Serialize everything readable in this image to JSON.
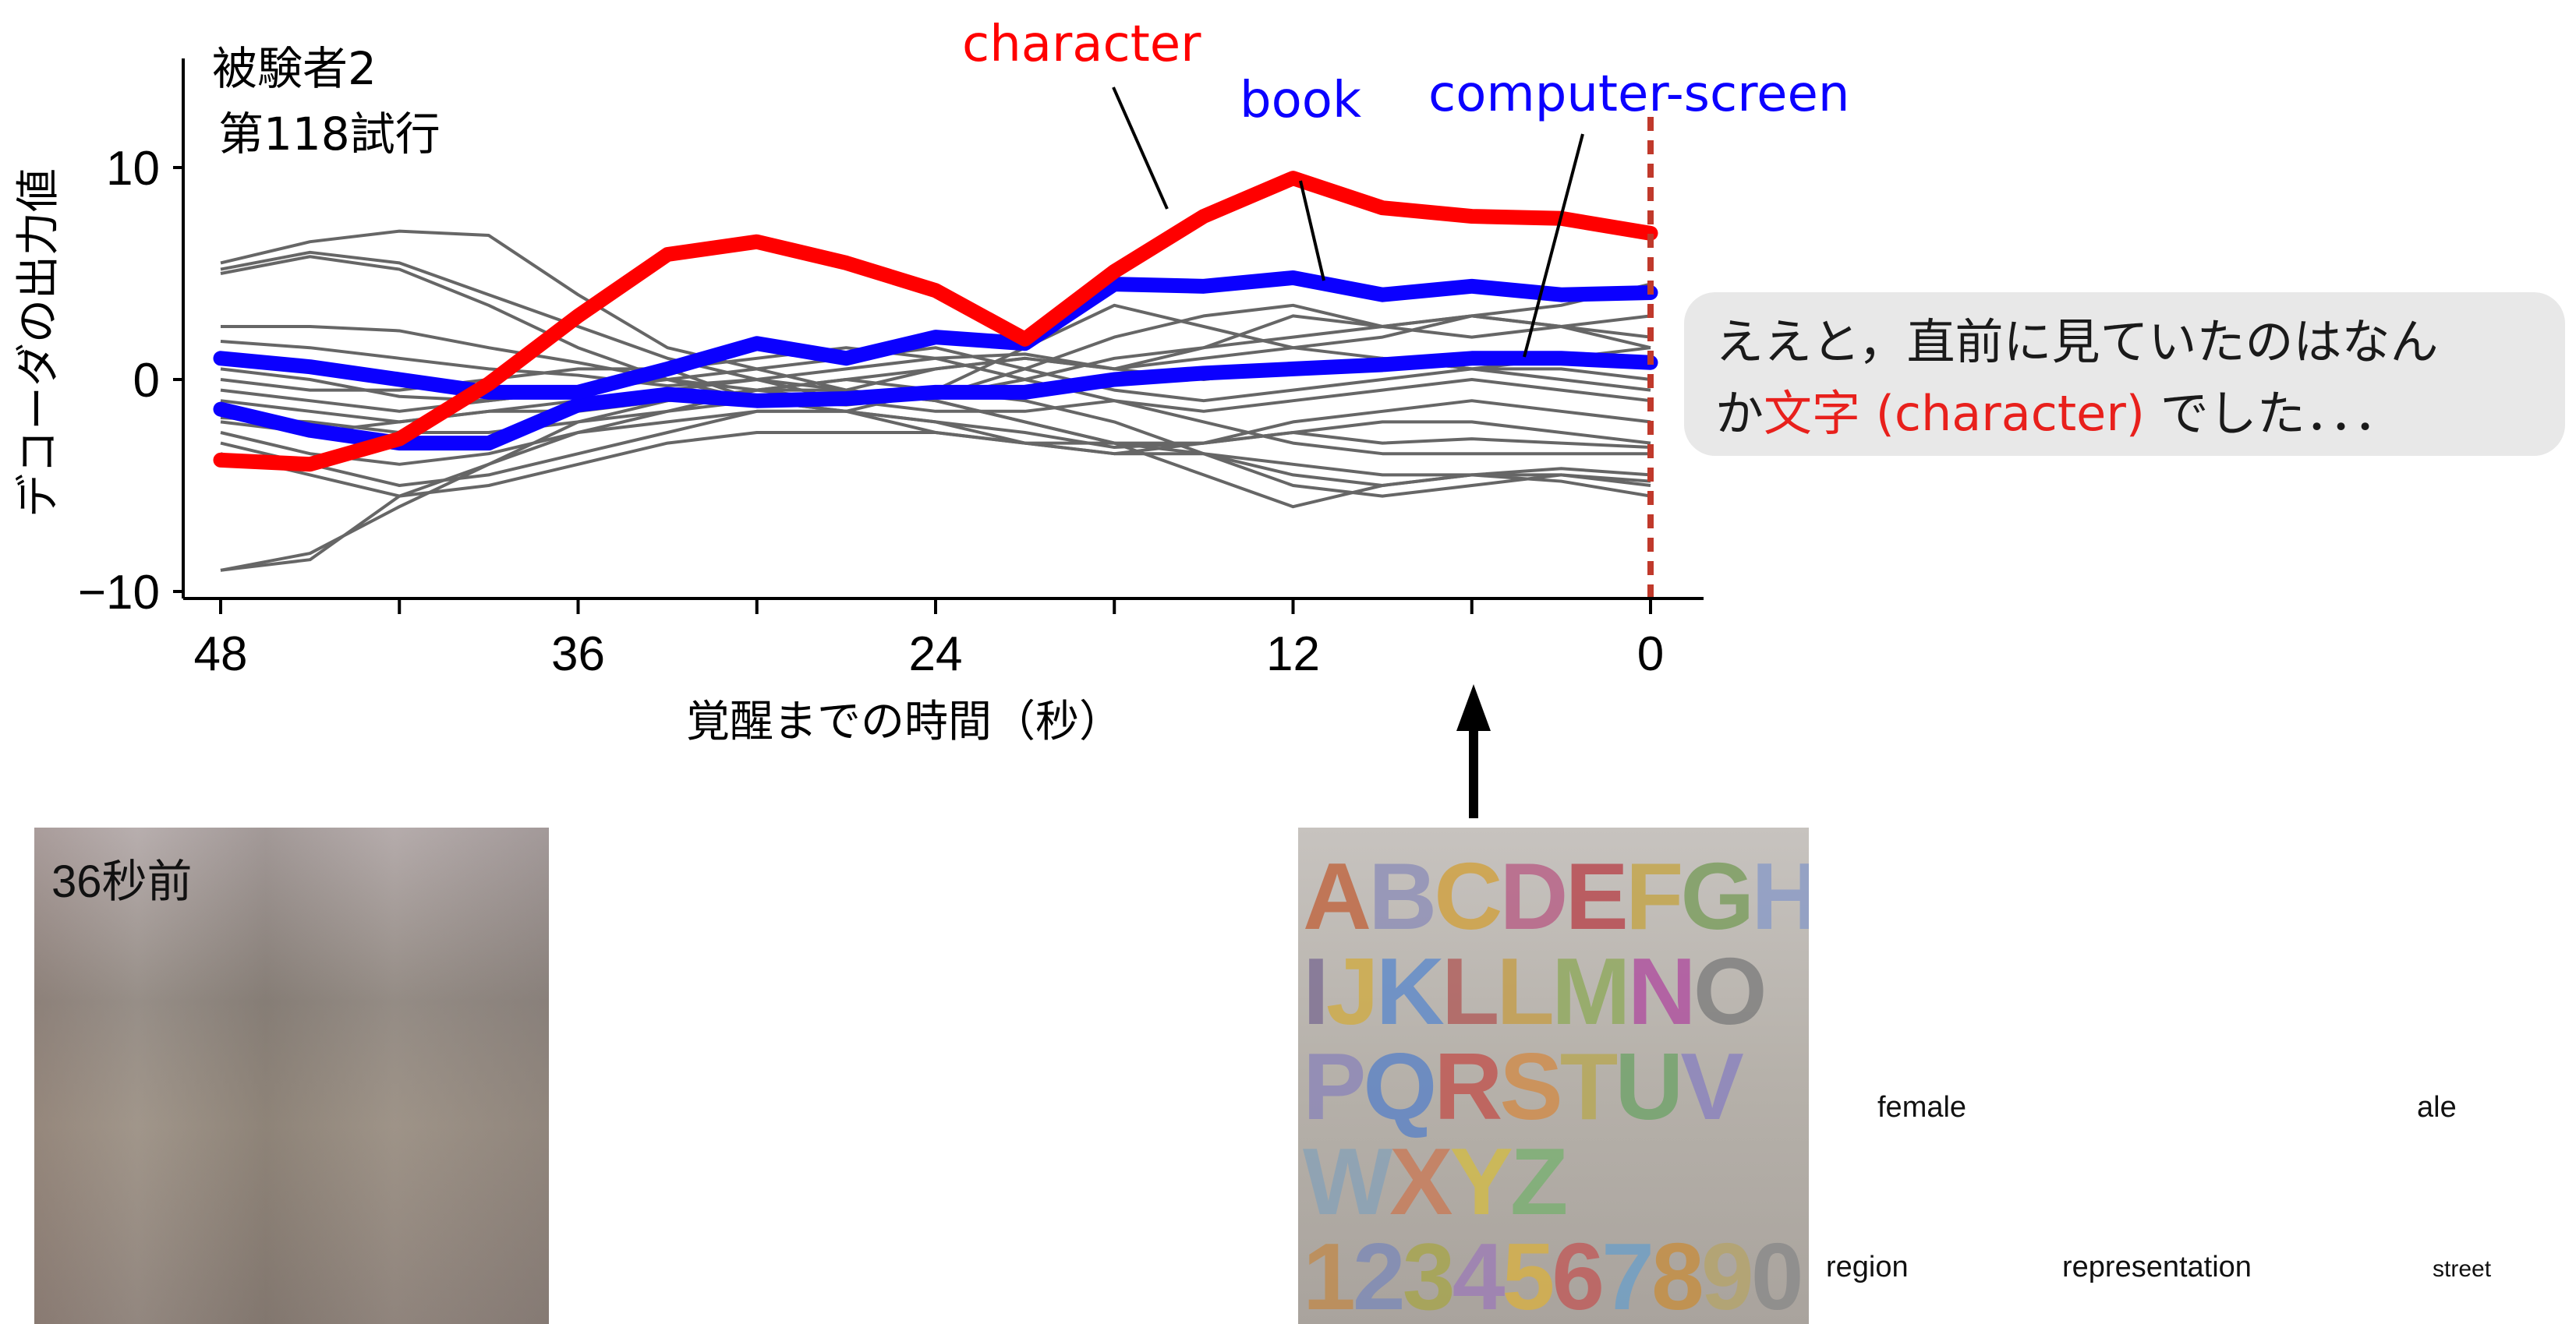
{
  "chart_data": {
    "type": "line",
    "annotation": [
      "被験者2",
      "第118試行"
    ],
    "xlabel": "覚醒までの時間（秒）",
    "ylabel": "デコーダの出力値",
    "xlim": [
      48,
      0
    ],
    "ylim": [
      -10,
      15
    ],
    "x_ticks": [
      48,
      36,
      24,
      12,
      0
    ],
    "x_tick_labels": [
      "48",
      "36",
      "24",
      "12",
      "0"
    ],
    "y_ticks": [
      10,
      0,
      -10
    ],
    "y_tick_labels": [
      "10",
      "0",
      "−10"
    ],
    "x": [
      48,
      42,
      36,
      30,
      24,
      18,
      12,
      6,
      0
    ],
    "highlighted_series": [
      {
        "name": "character",
        "color": "#ff0000",
        "x": [
          48,
          45,
          42,
          39,
          36,
          33,
          30,
          27,
          24,
          21,
          18,
          15,
          12,
          9,
          6,
          3,
          0
        ],
        "values": [
          -3.8,
          -4.0,
          -2.8,
          -0.2,
          3.0,
          5.9,
          6.5,
          5.5,
          4.2,
          1.9,
          5.1,
          7.7,
          9.5,
          8.1,
          7.7,
          7.6,
          6.9
        ]
      },
      {
        "name": "book",
        "color": "#0b00ff",
        "x": [
          48,
          45,
          42,
          39,
          36,
          33,
          30,
          27,
          24,
          21,
          18,
          15,
          12,
          9,
          6,
          3,
          0
        ],
        "values": [
          1.0,
          0.6,
          0.0,
          -0.6,
          -0.6,
          0.5,
          1.7,
          1.0,
          2.0,
          1.7,
          4.5,
          4.4,
          4.8,
          4.0,
          4.4,
          4.0,
          4.1
        ]
      },
      {
        "name": "computer-screen",
        "color": "#0b00ff",
        "x": [
          48,
          45,
          42,
          39,
          36,
          33,
          30,
          27,
          24,
          21,
          18,
          15,
          12,
          9,
          6,
          3,
          0
        ],
        "values": [
          -1.4,
          -2.4,
          -3.0,
          -3.0,
          -1.2,
          -0.7,
          -1.0,
          -0.9,
          -0.6,
          -0.6,
          0.0,
          0.3,
          0.5,
          0.7,
          1.0,
          1.0,
          0.8
        ]
      }
    ],
    "background_series": [
      {
        "x": [
          48,
          45,
          42,
          39,
          36,
          33,
          30,
          27,
          24,
          21,
          18,
          15,
          12,
          9,
          6,
          3,
          0
        ],
        "values": [
          5.5,
          6.5,
          7.0,
          6.8,
          4.0,
          1.5,
          0.5,
          -0.5,
          0.5,
          1.0,
          0.5,
          1.5,
          3.0,
          2.5,
          3.0,
          3.5,
          4.5
        ]
      },
      {
        "x": [
          48,
          45,
          42,
          39,
          36,
          33,
          30,
          27,
          24,
          21,
          18,
          15,
          12,
          9,
          6,
          3,
          0
        ],
        "values": [
          5.2,
          6.0,
          5.5,
          4.0,
          2.5,
          1.0,
          0.0,
          -1.0,
          -0.8,
          0.5,
          2.0,
          3.0,
          3.5,
          2.5,
          2.0,
          2.5,
          3.0
        ]
      },
      {
        "x": [
          48,
          45,
          42,
          39,
          36,
          33,
          30,
          27,
          24,
          21,
          18,
          15,
          12,
          9,
          6,
          3,
          0
        ],
        "values": [
          5.0,
          5.8,
          5.2,
          3.5,
          1.5,
          0.0,
          -1.0,
          -1.5,
          -0.5,
          1.5,
          3.5,
          2.5,
          1.5,
          2.0,
          3.0,
          2.5,
          1.5
        ]
      },
      {
        "x": [
          48,
          45,
          42,
          39,
          36,
          33,
          30,
          27,
          24,
          21,
          18,
          15,
          12,
          9,
          6,
          3,
          0
        ],
        "values": [
          2.5,
          2.5,
          2.3,
          1.5,
          0.8,
          0.0,
          -0.5,
          0.0,
          0.5,
          1.0,
          0.5,
          0.0,
          0.5,
          1.0,
          0.5,
          0.5,
          0.0
        ]
      },
      {
        "x": [
          48,
          45,
          42,
          39,
          36,
          33,
          30,
          27,
          24,
          21,
          18,
          15,
          12,
          9,
          6,
          3,
          0
        ],
        "values": [
          1.8,
          1.5,
          1.0,
          0.5,
          0.2,
          -0.3,
          0.0,
          0.5,
          1.0,
          1.2,
          0.5,
          1.0,
          1.5,
          1.0,
          0.5,
          1.0,
          1.5
        ]
      },
      {
        "x": [
          48,
          45,
          42,
          39,
          36,
          33,
          30,
          27,
          24,
          21,
          18,
          15,
          12,
          9,
          6,
          3,
          0
        ],
        "values": [
          -0.5,
          -1.0,
          -1.5,
          -1.0,
          -0.5,
          0.5,
          1.0,
          1.5,
          1.0,
          0.0,
          -1.0,
          -1.5,
          -1.0,
          -0.5,
          0.0,
          -0.5,
          -1.0
        ]
      },
      {
        "x": [
          48,
          45,
          42,
          39,
          36,
          33,
          30,
          27,
          24,
          21,
          18,
          15,
          12,
          9,
          6,
          3,
          0
        ],
        "values": [
          -1.0,
          -1.5,
          -2.0,
          -1.5,
          -1.0,
          -0.5,
          0.0,
          -0.5,
          -1.0,
          -2.0,
          -3.0,
          -3.0,
          -2.5,
          -2.0,
          -2.0,
          -2.5,
          -3.0
        ]
      },
      {
        "x": [
          48,
          45,
          42,
          39,
          36,
          33,
          30,
          27,
          24,
          21,
          18,
          15,
          12,
          9,
          6,
          3,
          0
        ],
        "values": [
          -2.0,
          -2.5,
          -2.0,
          -1.5,
          -1.5,
          -1.0,
          -0.5,
          -1.0,
          -1.5,
          -1.5,
          -1.0,
          -2.0,
          -3.0,
          -3.5,
          -3.5,
          -3.5,
          -3.5
        ]
      },
      {
        "x": [
          48,
          45,
          42,
          39,
          36,
          33,
          30,
          27,
          24,
          21,
          18,
          15,
          12,
          9,
          6,
          3,
          0
        ],
        "values": [
          -2.5,
          -3.5,
          -4.0,
          -3.5,
          -2.5,
          -2.0,
          -1.5,
          -1.5,
          -2.5,
          -3.0,
          -3.5,
          -3.0,
          -2.0,
          -1.5,
          -1.0,
          -1.5,
          -2.0
        ]
      },
      {
        "x": [
          48,
          45,
          42,
          39,
          36,
          33,
          30,
          27,
          24,
          21,
          18,
          15,
          12,
          9,
          6,
          3,
          0
        ],
        "values": [
          -3.0,
          -4.0,
          -5.0,
          -4.5,
          -3.5,
          -2.5,
          -1.5,
          -1.5,
          -2.0,
          -3.0,
          -3.5,
          -3.5,
          -4.0,
          -4.5,
          -4.5,
          -4.5,
          -5.0
        ]
      },
      {
        "x": [
          48,
          45,
          42,
          39,
          36,
          33,
          30,
          27,
          24,
          21,
          18,
          15,
          12,
          9,
          6,
          3,
          0
        ],
        "values": [
          -3.5,
          -4.5,
          -5.5,
          -5.0,
          -4.0,
          -3.0,
          -2.5,
          -2.5,
          -2.5,
          -3.0,
          -3.0,
          -3.5,
          -5.0,
          -5.5,
          -5.0,
          -4.5,
          -4.8
        ]
      },
      {
        "x": [
          48,
          45,
          42,
          39,
          36,
          33,
          30,
          27,
          24,
          21,
          18,
          15,
          12,
          9,
          6,
          3,
          0
        ],
        "values": [
          -9.0,
          -8.5,
          -5.5,
          -4.0,
          -2.5,
          -1.5,
          -0.5,
          0.0,
          -0.5,
          -1.0,
          -2.0,
          -3.5,
          -4.5,
          -5.0,
          -4.5,
          -4.2,
          -4.5
        ]
      },
      {
        "x": [
          48,
          45,
          42,
          39,
          36,
          33,
          30,
          27,
          24,
          21,
          18,
          15,
          12,
          9,
          6,
          3,
          0
        ],
        "values": [
          -9.0,
          -8.2,
          -6.0,
          -4.0,
          -2.0,
          -1.0,
          -0.5,
          -0.5,
          -1.0,
          -2.0,
          -3.0,
          -4.5,
          -6.0,
          -5.0,
          -4.5,
          -4.8,
          -5.5
        ]
      },
      {
        "x": [
          48,
          45,
          42,
          39,
          36,
          33,
          30,
          27,
          24,
          21,
          18,
          15,
          12,
          9,
          6,
          3,
          0
        ],
        "values": [
          0.0,
          -0.5,
          -0.5,
          0.0,
          0.5,
          0.5,
          -1.0,
          -1.2,
          -0.8,
          0.0,
          1.0,
          1.5,
          2.0,
          2.5,
          3.0,
          2.5,
          2.0
        ]
      },
      {
        "x": [
          48,
          45,
          42,
          39,
          36,
          33,
          30,
          27,
          24,
          21,
          18,
          15,
          12,
          9,
          6,
          3,
          0
        ],
        "values": [
          0.5,
          0.0,
          -0.8,
          -1.0,
          -0.5,
          0.0,
          0.5,
          1.0,
          1.5,
          0.5,
          -0.5,
          -1.0,
          -0.5,
          0.0,
          0.5,
          0.0,
          -0.5
        ]
      },
      {
        "x": [
          48,
          45,
          42,
          39,
          36,
          33,
          30,
          27,
          24,
          21,
          18,
          15,
          12,
          9,
          6,
          3,
          0
        ],
        "values": [
          -1.8,
          -2.0,
          -2.5,
          -2.5,
          -2.0,
          -1.5,
          -1.0,
          -1.5,
          -2.0,
          -2.5,
          -3.2,
          -3.0,
          -2.5,
          -3.0,
          -2.8,
          -3.0,
          -3.2
        ]
      }
    ],
    "background_color": "#666666",
    "reference_line_x": 0,
    "reference_line_color": "#c0392b",
    "reference_line_style": "dashed",
    "legend_labels": [
      {
        "text": "character",
        "color": "#ff0000"
      },
      {
        "text": "book",
        "color": "#0b00ff"
      },
      {
        "text": "computer-screen",
        "color": "#0b00ff"
      }
    ],
    "grid": false
  },
  "bubble": {
    "line1": "ええと，直前に見ていたのはなん",
    "line2_pre": "か",
    "line2_highlight": "文字 (character)",
    "line2_post": " でした．．．"
  },
  "left_thumb": {
    "label": "36秒前"
  },
  "right_thumb": {
    "rows": [
      {
        "text": "ABCDEFGH",
        "colors": [
          "#c0653f",
          "#8e8fb8",
          "#d1a13e",
          "#b85f86",
          "#b8454c",
          "#c4a547",
          "#7a9d5d",
          "#8a9bc7"
        ]
      },
      {
        "text": "IJKLLMNO",
        "colors": [
          "#7d6e93",
          "#d0ac45",
          "#5e8acb",
          "#b15d5b",
          "#c49e4a",
          "#90aa5d",
          "#b04fa0",
          "#7e7e7e"
        ]
      },
      {
        "text": "PQRSTUV",
        "colors": [
          "#8c86b8",
          "#5c83c6",
          "#c1544f",
          "#d18c4a",
          "#b7a855",
          "#70a36a",
          "#8a82bf"
        ]
      },
      {
        "text": "WXYZ",
        "colors": [
          "#88a2b7",
          "#c97b58",
          "#d2bb48",
          "#7ab072"
        ]
      },
      {
        "text": "1234567890",
        "colors": [
          "#c08b4f",
          "#7d8ab7",
          "#a7a54c",
          "#9d7db6",
          "#d7b045",
          "#c05b5a",
          "#6d9fc7",
          "#c68e40",
          "#b5a46b",
          "#8a8a8a"
        ]
      }
    ]
  },
  "words": [
    {
      "text": "female",
      "size": "38px"
    },
    {
      "text": "ale",
      "size": "38px"
    },
    {
      "text": "region",
      "size": "38px"
    },
    {
      "text": "representation",
      "size": "38px"
    },
    {
      "text": "street",
      "size": "30px"
    }
  ]
}
